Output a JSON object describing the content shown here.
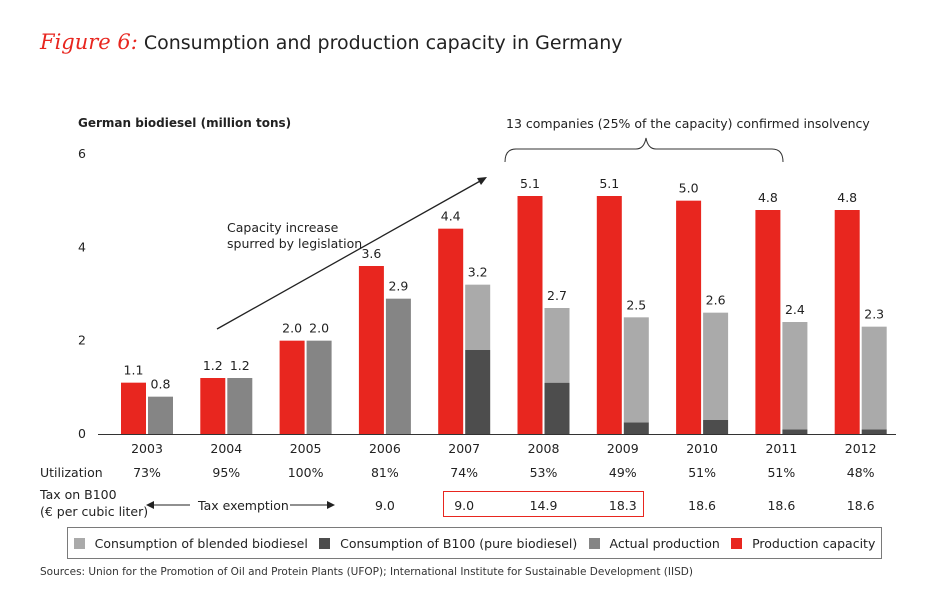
{
  "figure": {
    "number": "Figure 6:",
    "title": "Consumption and production capacity in Germany"
  },
  "annotations": {
    "insolvency": "13 companies (25% of the capacity) confirmed insolvency",
    "capacity_line1": "Capacity increase",
    "capacity_line2": "spurred by legislation"
  },
  "rows": {
    "utilization_label": "Utilization",
    "tax_label_line1": "Tax on B100",
    "tax_label_line2": "(€ per cubic liter)",
    "tax_exemption": "Tax exemption",
    "utilization": [
      "73%",
      "95%",
      "100%",
      "81%",
      "74%",
      "53%",
      "49%",
      "51%",
      "51%",
      "48%"
    ],
    "tax": [
      "9.0",
      "9.0",
      "14.9",
      "18.3",
      "18.6",
      "18.6",
      "18.6"
    ]
  },
  "legend": [
    {
      "label": "Consumption of blended biodiesel",
      "color": "#aaaaaa"
    },
    {
      "label": "Consumption of B100 (pure biodiesel)",
      "color": "#4d4d4d"
    },
    {
      "label": "Actual production",
      "color": "#858585"
    },
    {
      "label": "Production capacity",
      "color": "#e8261f"
    }
  ],
  "source": "Sources: Union for the Promotion of Oil and Protein Plants (UFOP); International Institute for Sustainable Development (IISD)",
  "chart_data": {
    "type": "bar",
    "title": "Consumption and production capacity in Germany",
    "ylabel": "German biodiesel (million tons)",
    "xlabel": "",
    "ylim": [
      0,
      6
    ],
    "yticks": [
      "0",
      "2",
      "4",
      "6"
    ],
    "categories": [
      "2003",
      "2004",
      "2005",
      "2006",
      "2007",
      "2008",
      "2009",
      "2010",
      "2011",
      "2012"
    ],
    "series": [
      {
        "name": "Production capacity",
        "values": [
          1.1,
          1.2,
          2.0,
          3.6,
          4.4,
          5.1,
          5.1,
          5.0,
          4.8,
          4.8
        ],
        "labels": [
          "1.1",
          "1.2",
          "2.0",
          "3.6",
          "4.4",
          "5.1",
          "5.1",
          "5.0",
          "4.8",
          "4.8"
        ]
      },
      {
        "name": "Actual production",
        "values": [
          0.8,
          1.2,
          2.0,
          2.9,
          null,
          null,
          null,
          null,
          null,
          null
        ]
      },
      {
        "name": "Consumption of B100 (pure biodiesel)",
        "values": [
          null,
          null,
          null,
          null,
          1.8,
          1.1,
          0.25,
          0.3,
          0.1,
          0.1
        ]
      },
      {
        "name": "Consumption of blended biodiesel",
        "values": [
          null,
          null,
          null,
          null,
          1.4,
          1.6,
          2.25,
          2.3,
          2.3,
          2.2
        ]
      }
    ],
    "second_bar_totals": [
      "0.8",
      "1.2",
      "2.0",
      "2.9",
      "3.2",
      "2.7",
      "2.5",
      "2.6",
      "2.4",
      "2.3"
    ]
  }
}
